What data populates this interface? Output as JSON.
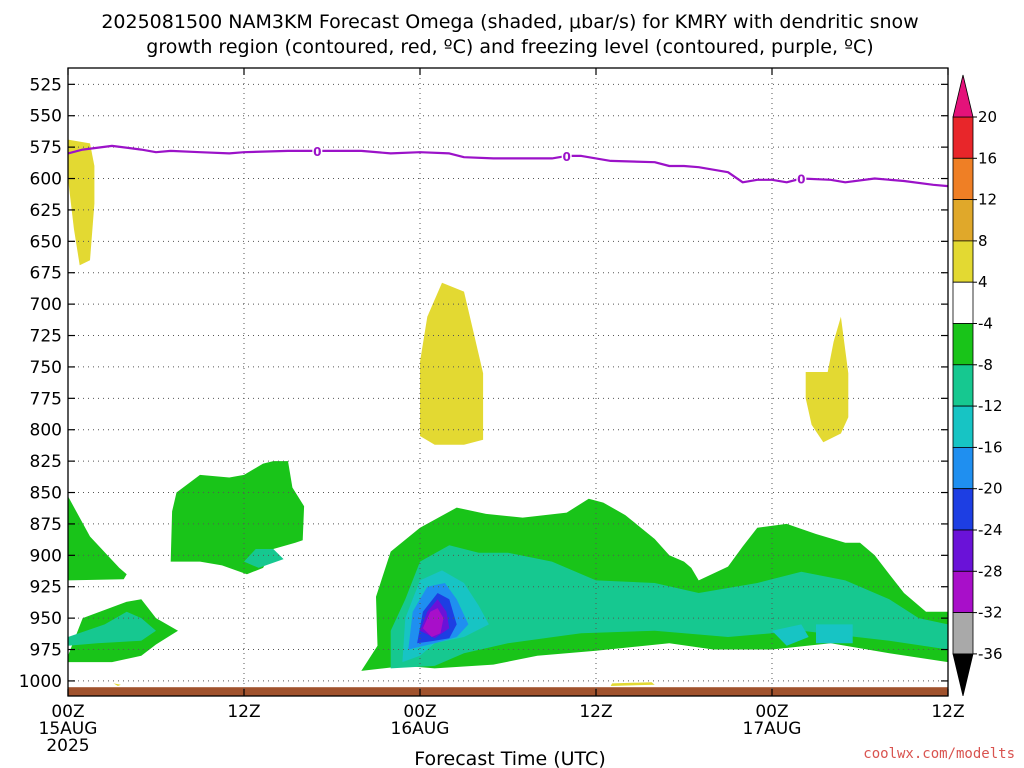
{
  "title_lines": [
    "2025081500 NAM3KM Forecast Omega (shaded, μbar/s) for KMRY with dendritic snow",
    "growth region (contoured, red, ºC) and freezing level (contoured, purple, ºC)"
  ],
  "credit": "coolwx.com/modelts",
  "chart_data": {
    "type": "heatmap",
    "xlabel": "Forecast Time (UTC)",
    "ylabel": "",
    "x_range_hours": [
      0,
      60
    ],
    "y_range_mb": [
      512,
      1012
    ],
    "y_ticks": [
      525,
      550,
      575,
      600,
      625,
      650,
      675,
      700,
      725,
      750,
      775,
      800,
      825,
      850,
      875,
      900,
      925,
      950,
      975,
      1000
    ],
    "x_ticks": [
      {
        "hour": 0,
        "lines": [
          "00Z",
          "15AUG",
          "2025"
        ]
      },
      {
        "hour": 12,
        "lines": [
          "12Z"
        ]
      },
      {
        "hour": 24,
        "lines": [
          "00Z",
          "16AUG"
        ]
      },
      {
        "hour": 36,
        "lines": [
          "12Z"
        ]
      },
      {
        "hour": 48,
        "lines": [
          "00Z",
          "17AUG"
        ]
      },
      {
        "hour": 60,
        "lines": [
          "12Z"
        ]
      }
    ],
    "grid": true,
    "colorbar": {
      "labels": [
        "20",
        "16",
        "12",
        "8",
        "4",
        "-4",
        "-8",
        "-12",
        "-16",
        "-20",
        "-24",
        "-28",
        "-32",
        "-36"
      ],
      "segments": [
        {
          "lo": 16,
          "hi": 20,
          "color": "#e8262a"
        },
        {
          "lo": 12,
          "hi": 16,
          "color": "#ef7f25"
        },
        {
          "lo": 8,
          "hi": 12,
          "color": "#e0a82a"
        },
        {
          "lo": 4,
          "hi": 8,
          "color": "#e3d932"
        },
        {
          "lo": -4,
          "hi": 4,
          "color": "#ffffff"
        },
        {
          "lo": -8,
          "hi": -4,
          "color": "#19c419"
        },
        {
          "lo": -12,
          "hi": -8,
          "color": "#16c890"
        },
        {
          "lo": -16,
          "hi": -12,
          "color": "#17c4c4"
        },
        {
          "lo": -20,
          "hi": -16,
          "color": "#1f8ff0"
        },
        {
          "lo": -24,
          "hi": -20,
          "color": "#1d3ee3"
        },
        {
          "lo": -28,
          "hi": -24,
          "color": "#6a12d8"
        },
        {
          "lo": -32,
          "hi": -28,
          "color": "#a80fc9"
        },
        {
          "lo": -36,
          "hi": -32,
          "color": "#a9a9a9"
        }
      ],
      "top_arrow_color": "#e4127a",
      "bottom_arrow_color": "#000000"
    },
    "freezing_level": {
      "color": "#9b12c8",
      "label": "0",
      "label_hours": [
        17,
        34,
        50
      ],
      "points": [
        [
          0,
          580
        ],
        [
          1,
          577
        ],
        [
          3,
          574
        ],
        [
          5,
          577
        ],
        [
          6,
          579
        ],
        [
          7,
          578
        ],
        [
          9,
          579
        ],
        [
          11,
          580
        ],
        [
          12,
          579
        ],
        [
          15,
          578
        ],
        [
          20,
          578
        ],
        [
          22,
          580
        ],
        [
          24,
          579
        ],
        [
          26,
          580
        ],
        [
          27,
          583
        ],
        [
          29,
          584
        ],
        [
          33,
          584
        ],
        [
          34,
          582
        ],
        [
          35,
          582
        ],
        [
          37,
          586
        ],
        [
          40,
          587
        ],
        [
          41,
          590
        ],
        [
          42,
          590
        ],
        [
          43,
          591
        ],
        [
          45,
          595
        ],
        [
          46,
          603
        ],
        [
          47,
          601
        ],
        [
          48,
          601
        ],
        [
          49,
          603
        ],
        [
          50,
          600
        ],
        [
          52,
          601
        ],
        [
          53,
          603
        ],
        [
          55,
          600
        ],
        [
          57,
          602
        ],
        [
          59,
          605
        ],
        [
          60,
          606
        ]
      ]
    },
    "ground": {
      "color": "#a0522d",
      "top_mb": 1005,
      "bottom_mb": 1012
    },
    "regions": [
      {
        "omega": 6,
        "color": "#e3d932",
        "points": [
          [
            0,
            569
          ],
          [
            1.5,
            572
          ],
          [
            1.8,
            590
          ],
          [
            1.8,
            620
          ],
          [
            1.5,
            665
          ],
          [
            0.8,
            669
          ],
          [
            0.4,
            640
          ],
          [
            0,
            600
          ]
        ]
      },
      {
        "omega": 6,
        "color": "#e3d932",
        "points": [
          [
            25.5,
            683
          ],
          [
            27,
            690
          ],
          [
            27.7,
            725
          ],
          [
            28.3,
            755
          ],
          [
            28.3,
            808
          ],
          [
            27,
            812
          ],
          [
            25,
            812
          ],
          [
            24,
            805
          ],
          [
            24,
            773
          ],
          [
            24,
            746
          ],
          [
            24.5,
            710
          ]
        ]
      },
      {
        "omega": 6,
        "color": "#e3d932",
        "points": [
          [
            52.7,
            710
          ],
          [
            53.2,
            755
          ],
          [
            53.2,
            790
          ],
          [
            52.7,
            803
          ],
          [
            51.5,
            810
          ],
          [
            50.7,
            796
          ],
          [
            50.3,
            775
          ],
          [
            50.3,
            754
          ],
          [
            51.8,
            754
          ],
          [
            52.2,
            730
          ]
        ]
      },
      {
        "omega": 6,
        "color": "#e3d932",
        "points": [
          [
            37.1,
            1002
          ],
          [
            39.8,
            1001
          ],
          [
            40,
            1003
          ],
          [
            37,
            1004
          ]
        ]
      },
      {
        "omega": 6,
        "color": "#e3d932",
        "points": [
          [
            3.1,
            1002
          ],
          [
            3.6,
            1003
          ],
          [
            3.4,
            1004
          ]
        ]
      },
      {
        "omega": -6,
        "color": "#19c419",
        "points": [
          [
            0,
            853
          ],
          [
            1.5,
            885
          ],
          [
            3.5,
            910
          ],
          [
            4,
            915
          ],
          [
            3.8,
            919
          ],
          [
            0,
            920
          ]
        ]
      },
      {
        "omega": -6,
        "color": "#19c419",
        "points": [
          [
            0,
            980
          ],
          [
            1,
            950
          ],
          [
            4,
            937
          ],
          [
            5,
            935
          ],
          [
            6,
            950
          ],
          [
            7.5,
            960
          ],
          [
            6,
            971
          ],
          [
            5,
            980
          ],
          [
            3,
            985
          ],
          [
            0,
            985
          ]
        ]
      },
      {
        "omega": -6,
        "color": "#19c419",
        "points": [
          [
            7.1,
            865
          ],
          [
            7.4,
            850
          ],
          [
            9,
            836
          ],
          [
            11,
            838
          ],
          [
            12,
            836
          ],
          [
            13.3,
            827
          ],
          [
            14,
            825
          ],
          [
            15,
            825
          ],
          [
            15.3,
            846
          ],
          [
            16.1,
            861
          ],
          [
            16,
            888
          ],
          [
            15.5,
            890
          ],
          [
            14,
            895
          ],
          [
            13.3,
            910
          ],
          [
            12.2,
            915
          ],
          [
            10.5,
            908
          ],
          [
            9,
            905
          ],
          [
            7,
            905
          ]
        ]
      },
      {
        "omega": -6,
        "color": "#19c419",
        "points": [
          [
            20,
            992
          ],
          [
            21.1,
            972
          ],
          [
            21,
            933
          ],
          [
            22,
            897
          ],
          [
            24,
            878
          ],
          [
            26.5,
            862
          ],
          [
            28.5,
            867
          ],
          [
            31,
            870
          ],
          [
            34,
            866
          ],
          [
            35.5,
            855
          ],
          [
            36.5,
            858
          ],
          [
            38,
            868
          ],
          [
            40,
            887
          ],
          [
            41,
            900
          ],
          [
            42,
            905
          ],
          [
            42.5,
            910
          ],
          [
            43,
            920
          ],
          [
            45,
            909
          ],
          [
            46,
            893
          ],
          [
            47,
            878
          ],
          [
            49,
            875
          ],
          [
            51,
            883
          ],
          [
            53,
            890
          ],
          [
            54,
            890
          ],
          [
            55,
            900
          ],
          [
            56,
            915
          ],
          [
            57,
            930
          ],
          [
            58.5,
            945
          ],
          [
            60,
            945
          ],
          [
            60,
            985
          ],
          [
            56,
            978
          ],
          [
            52,
            970
          ],
          [
            48,
            975
          ],
          [
            44,
            975
          ],
          [
            41,
            970
          ],
          [
            36,
            976
          ],
          [
            32,
            980
          ],
          [
            29,
            987
          ],
          [
            25,
            990
          ],
          [
            23,
            988
          ],
          [
            21.5,
            990
          ]
        ]
      },
      {
        "omega": -10,
        "color": "#16c890",
        "points": [
          [
            0,
            965
          ],
          [
            2.5,
            955
          ],
          [
            4,
            945
          ],
          [
            5,
            950
          ],
          [
            6,
            960
          ],
          [
            5,
            968
          ],
          [
            2,
            970
          ],
          [
            0,
            972
          ]
        ]
      },
      {
        "omega": -10,
        "color": "#16c890",
        "points": [
          [
            12.8,
            895
          ],
          [
            14,
            895
          ],
          [
            14.7,
            903
          ],
          [
            13,
            910
          ],
          [
            12,
            905
          ]
        ]
      },
      {
        "omega": -10,
        "color": "#16c890",
        "points": [
          [
            22,
            990
          ],
          [
            22,
            960
          ],
          [
            23,
            935
          ],
          [
            24,
            905
          ],
          [
            26,
            892
          ],
          [
            28,
            898
          ],
          [
            30,
            898
          ],
          [
            33,
            905
          ],
          [
            36,
            920
          ],
          [
            40,
            922
          ],
          [
            43,
            930
          ],
          [
            47,
            922
          ],
          [
            50,
            913
          ],
          [
            53,
            920
          ],
          [
            56,
            935
          ],
          [
            58,
            950
          ],
          [
            60,
            955
          ],
          [
            60,
            975
          ],
          [
            56,
            968
          ],
          [
            50,
            960
          ],
          [
            45,
            965
          ],
          [
            40,
            960
          ],
          [
            35,
            962
          ],
          [
            30,
            970
          ],
          [
            27,
            978
          ],
          [
            25,
            988
          ]
        ]
      },
      {
        "omega": -14,
        "color": "#17c4c4",
        "points": [
          [
            22.8,
            985
          ],
          [
            23,
            950
          ],
          [
            24,
            920
          ],
          [
            25.5,
            912
          ],
          [
            27,
            922
          ],
          [
            28,
            940
          ],
          [
            28.7,
            955
          ],
          [
            27,
            965
          ],
          [
            25,
            970
          ],
          [
            24,
            980
          ]
        ]
      },
      {
        "omega": -14,
        "color": "#17c4c4",
        "points": [
          [
            48,
            960
          ],
          [
            50,
            955
          ],
          [
            50.5,
            965
          ],
          [
            49,
            972
          ]
        ]
      },
      {
        "omega": -14,
        "color": "#17c4c4",
        "points": [
          [
            51,
            955
          ],
          [
            53.5,
            955
          ],
          [
            53.5,
            970
          ],
          [
            51,
            970
          ]
        ]
      },
      {
        "omega": -18,
        "color": "#1f8ff0",
        "points": [
          [
            23.2,
            975
          ],
          [
            23.5,
            945
          ],
          [
            24.5,
            925
          ],
          [
            25.7,
            922
          ],
          [
            26.5,
            935
          ],
          [
            27.3,
            955
          ],
          [
            26.5,
            965
          ],
          [
            25,
            970
          ]
        ]
      },
      {
        "omega": -22,
        "color": "#1d3ee3",
        "points": [
          [
            23.8,
            970
          ],
          [
            24.2,
            945
          ],
          [
            25.2,
            930
          ],
          [
            26,
            935
          ],
          [
            26.5,
            955
          ],
          [
            26,
            966
          ],
          [
            25,
            968
          ]
        ]
      },
      {
        "omega": -26,
        "color": "#6a12d8",
        "points": [
          [
            24,
            960
          ],
          [
            24.5,
            945
          ],
          [
            25.2,
            935
          ],
          [
            25.8,
            945
          ],
          [
            26,
            958
          ],
          [
            25,
            966
          ]
        ]
      },
      {
        "omega": -30,
        "color": "#a80fc9",
        "points": [
          [
            24.2,
            958
          ],
          [
            24.7,
            945
          ],
          [
            25.2,
            942
          ],
          [
            25.6,
            950
          ],
          [
            25.4,
            962
          ],
          [
            24.8,
            965
          ]
        ]
      }
    ]
  }
}
